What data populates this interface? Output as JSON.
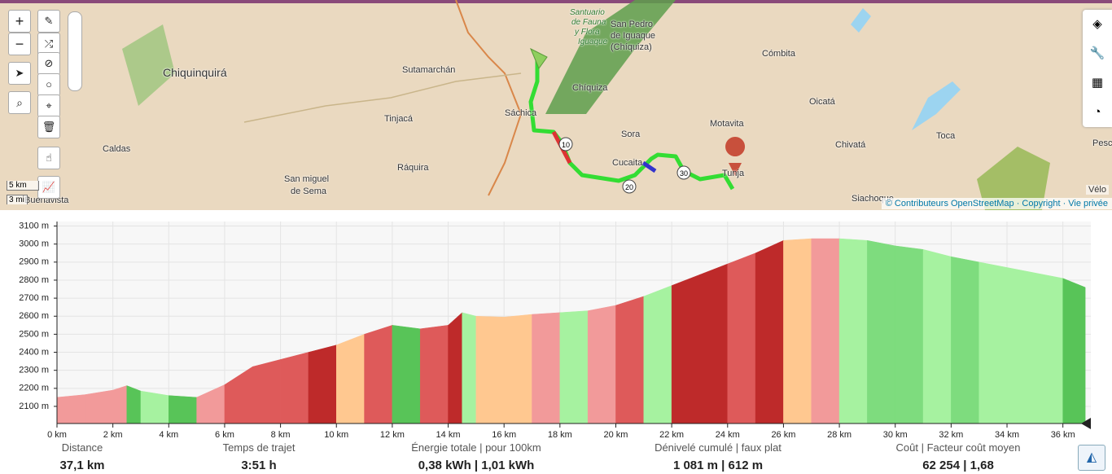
{
  "map": {
    "zoom_in": "+",
    "zoom_out": "−",
    "scale_km": "5 km",
    "scale_mi": "3 mi",
    "profile": "Vélo",
    "attribution": "© Contributeurs OpenStreetMap · Copyright · Vie privée",
    "places": [
      "Chiquinquirá",
      "Sutamarchán",
      "Tinjacá",
      "Caldas",
      "San miguel",
      "de Sema",
      "Ráquira",
      "Sáchica",
      "Chíquiza",
      "Santuario",
      "de Fauna",
      "y Flora",
      "Iguaque",
      "San Pedro",
      "de Iguaque",
      "(Chíquiza)",
      "Sora",
      "Cucaita",
      "Motavita",
      "Tunja",
      "Cómbita",
      "Oicatá",
      "Chivatá",
      "Toca",
      "Siachoque",
      "Pesca",
      "Buenavista"
    ],
    "route_markers": [
      "10",
      "20",
      "30"
    ]
  },
  "chart_data": {
    "type": "area",
    "x": [
      0,
      1,
      2,
      2.5,
      3,
      4,
      5,
      6,
      7,
      8,
      9,
      10,
      11,
      12,
      13,
      14,
      14.5,
      15,
      16,
      17,
      18,
      19,
      20,
      21,
      22,
      23,
      24,
      25,
      26,
      27,
      28,
      29,
      30,
      31,
      32,
      33,
      34,
      35,
      36,
      36.8
    ],
    "series": [
      {
        "values": [
          2150,
          2165,
          2190,
          2215,
          2185,
          2160,
          2150,
          2220,
          2320,
          2360,
          2400,
          2440,
          2500,
          2550,
          2530,
          2550,
          2620,
          2600,
          2595,
          2610,
          2620,
          2630,
          2660,
          2710,
          2770,
          2830,
          2890,
          2950,
          3020,
          3030,
          3030,
          3020,
          2990,
          2970,
          2930,
          2900,
          2870,
          2840,
          2810,
          2760
        ],
        "segment_colors": [
          "#f29a9a",
          "#f29a9a",
          "#f29a9a",
          "#58c458",
          "#a6f2a0",
          "#58c458",
          "#f29a9a",
          "#de5a5a",
          "#de5a5a",
          "#de5a5a",
          "#be2a2a",
          "#ffc890",
          "#de5a5a",
          "#58c458",
          "#de5a5a",
          "#be2a2a",
          "#a6f2a0",
          "#ffc890",
          "#ffc890",
          "#f29a9a",
          "#a6f2a0",
          "#f29a9a",
          "#de5a5a",
          "#a6f2a0",
          "#be2a2a",
          "#be2a2a",
          "#de5a5a",
          "#be2a2a",
          "#ffc890",
          "#f29a9a",
          "#a6f2a0",
          "#7edc7e",
          "#7edc7e",
          "#a6f2a0",
          "#7edc7e",
          "#a6f2a0",
          "#a6f2a0",
          "#a6f2a0",
          "#58c458"
        ]
      }
    ],
    "xlim": [
      0,
      37
    ],
    "ylim": [
      2005,
      3125
    ],
    "xticks": [
      {
        "value": 0,
        "label": "0 km"
      },
      {
        "value": 2,
        "label": "2 km"
      },
      {
        "value": 4,
        "label": "4 km"
      },
      {
        "value": 6,
        "label": "6 km"
      },
      {
        "value": 8,
        "label": "8 km"
      },
      {
        "value": 10,
        "label": "10 km"
      },
      {
        "value": 12,
        "label": "12 km"
      },
      {
        "value": 14,
        "label": "14 km"
      },
      {
        "value": 16,
        "label": "16 km"
      },
      {
        "value": 18,
        "label": "18 km"
      },
      {
        "value": 20,
        "label": "20 km"
      },
      {
        "value": 22,
        "label": "22 km"
      },
      {
        "value": 24,
        "label": "24 km"
      },
      {
        "value": 26,
        "label": "26 km"
      },
      {
        "value": 28,
        "label": "28 km"
      },
      {
        "value": 30,
        "label": "30 km"
      },
      {
        "value": 32,
        "label": "32 km"
      },
      {
        "value": 34,
        "label": "34 km"
      },
      {
        "value": 36,
        "label": "36 km"
      }
    ],
    "yticks": [
      {
        "value": 2100,
        "label": "2100 m"
      },
      {
        "value": 2200,
        "label": "2200 m"
      },
      {
        "value": 2300,
        "label": "2300 m"
      },
      {
        "value": 2400,
        "label": "2400 m"
      },
      {
        "value": 2500,
        "label": "2500 m"
      },
      {
        "value": 2600,
        "label": "2600 m"
      },
      {
        "value": 2700,
        "label": "2700 m"
      },
      {
        "value": 2800,
        "label": "2800 m"
      },
      {
        "value": 2900,
        "label": "2900 m"
      },
      {
        "value": 3000,
        "label": "3000 m"
      },
      {
        "value": 3100,
        "label": "3100 m"
      }
    ],
    "grid": true
  },
  "stats": [
    {
      "label": "Distance",
      "value": "37,1 km"
    },
    {
      "label": "Temps de trajet",
      "value": "3:51 h"
    },
    {
      "label": "Énergie totale | pour 100km",
      "value": "0,38 kWh | 1,01 kWh"
    },
    {
      "label": "Dénivelé cumulé | faux plat",
      "value": "1 081 m | 612 m"
    },
    {
      "label": "Coût | Facteur coût moyen",
      "value": "62 254 | 1,68"
    }
  ]
}
